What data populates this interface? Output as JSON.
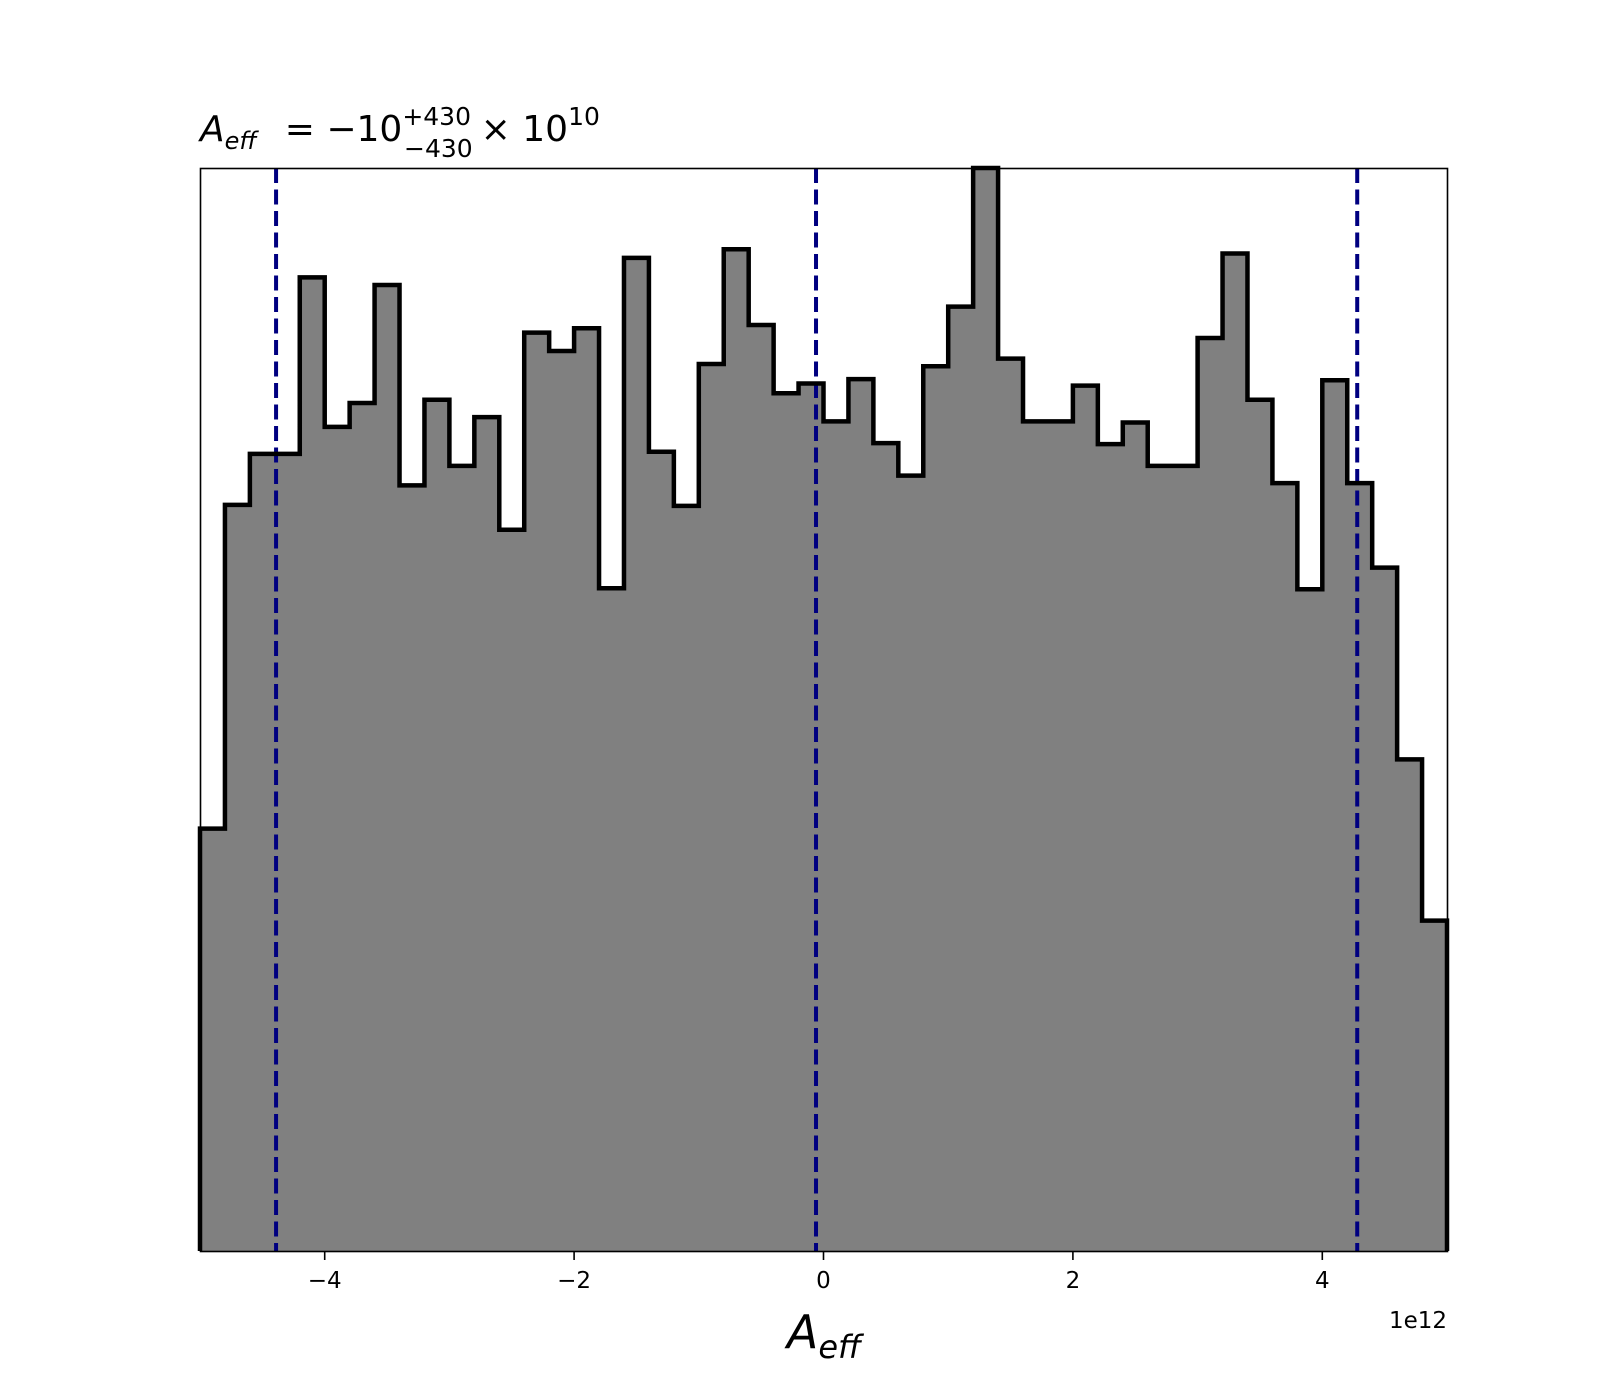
{
  "chart_data": {
    "type": "histogram",
    "title": {
      "symbol": "A",
      "symbol_sub": "eff",
      "equals": "= −10",
      "sup": "+430",
      "sub": "−430",
      "times": "× 10",
      "exp": "10"
    },
    "xlabel": {
      "symbol": "A",
      "sub": "eff"
    },
    "x_offset_label": "1e12",
    "xlim": [
      -5000000000000.0,
      5000000000000.0
    ],
    "ylim": [
      0,
      100
    ],
    "y_axis_visible": false,
    "grid": false,
    "x_ticks": [
      {
        "value": -4000000000000.0,
        "label": "−4"
      },
      {
        "value": -2000000000000.0,
        "label": "−2"
      },
      {
        "value": 0.0,
        "label": "0"
      },
      {
        "value": 2000000000000.0,
        "label": "2"
      },
      {
        "value": 4000000000000.0,
        "label": "4"
      }
    ],
    "bin_edges": [
      -5000000000000.0,
      -4800000000000.0,
      -4600000000000.0,
      -4400000000000.0,
      -4200000000000.0,
      -4000000000000.0,
      -3800000000000.0,
      -3600000000000.0,
      -3400000000000.0,
      -3200000000000.0,
      -3000000000000.0,
      -2800000000000.0,
      -2600000000000.0,
      -2400000000000.0,
      -2200000000000.0,
      -2000000000000.0,
      -1800000000000.0,
      -1600000000000.0,
      -1400000000000.0,
      -1200000000000.0,
      -1000000000000.0,
      -800000000000.0,
      -600000000000.0,
      -400000000000.0,
      -200000000000.0,
      0.0,
      200000000000.0,
      400000000000.0,
      600000000000.0,
      800000000000.0,
      1000000000000.0,
      1200000000000.0,
      1400000000000.0,
      1600000000000.0,
      1800000000000.0,
      2000000000000.0,
      2200000000000.0,
      2400000000000.0,
      2600000000000.0,
      2800000000000.0,
      3000000000000.0,
      3200000000000.0,
      3400000000000.0,
      3600000000000.0,
      3800000000000.0,
      4000000000000.0,
      4200000000000.0,
      4400000000000.0,
      4600000000000.0,
      4800000000000.0,
      5000000000000.0
    ],
    "counts": [
      39.0,
      68.9,
      73.6,
      73.6,
      89.9,
      76.1,
      78.3,
      89.2,
      70.7,
      78.6,
      72.5,
      77.0,
      66.6,
      84.8,
      83.1,
      85.2,
      61.2,
      91.7,
      73.8,
      68.8,
      81.9,
      92.5,
      85.5,
      79.2,
      80.1,
      76.6,
      80.5,
      74.6,
      71.6,
      81.7,
      87.2,
      100.0,
      82.4,
      76.6,
      76.6,
      79.9,
      74.5,
      76.5,
      72.5,
      72.5,
      84.3,
      92.1,
      78.6,
      70.9,
      61.1,
      80.4,
      70.9,
      63.1,
      45.4,
      30.5
    ],
    "fill_color": "#808080",
    "edge_color": "#000000",
    "vlines": [
      {
        "value": -4390000000000.0,
        "color": "#000080",
        "style": "dashed"
      },
      {
        "value": -60000000000.0,
        "color": "#000080",
        "style": "dashed"
      },
      {
        "value": 4280000000000.0,
        "color": "#000080",
        "style": "dashed"
      }
    ]
  }
}
